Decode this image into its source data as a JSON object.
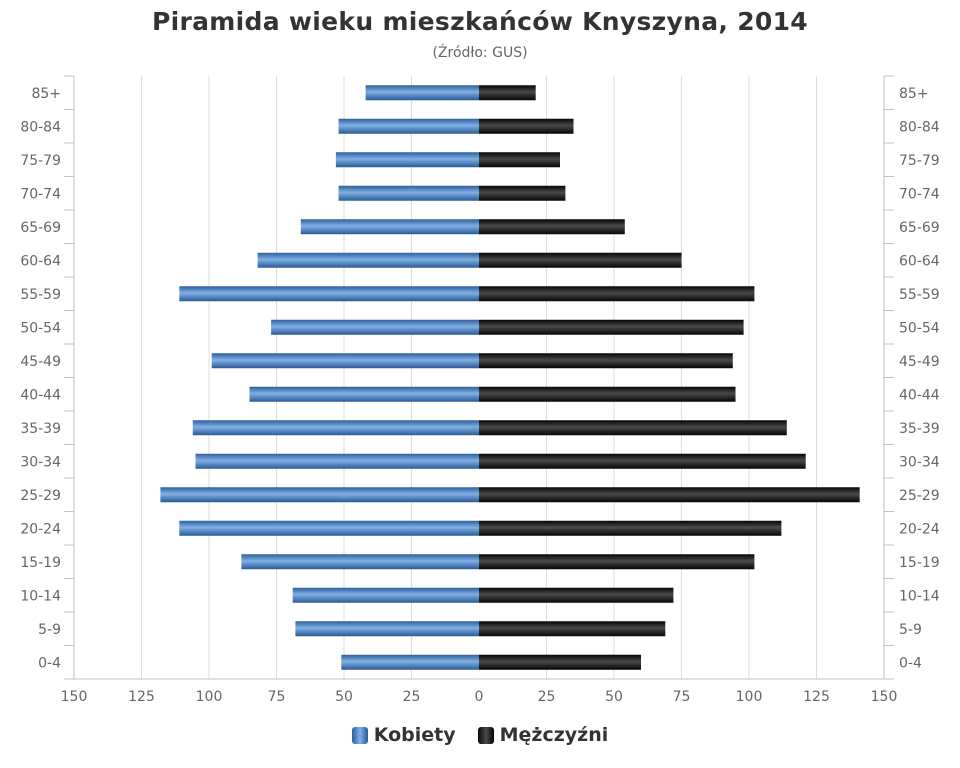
{
  "chart_data": {
    "type": "bar",
    "title": "Piramida wieku mieszkańców Knyszyna, 2014",
    "subtitle": "(Źródło: GUS)",
    "categories": [
      "85+",
      "80-84",
      "75-79",
      "70-74",
      "65-69",
      "60-64",
      "55-59",
      "50-54",
      "45-49",
      "40-44",
      "35-39",
      "30-34",
      "25-29",
      "20-24",
      "15-19",
      "10-14",
      "5-9",
      "0-4"
    ],
    "series": [
      {
        "name": "Kobiety",
        "color": "#4a84c4",
        "values": [
          42,
          52,
          53,
          52,
          66,
          82,
          111,
          77,
          99,
          85,
          106,
          105,
          118,
          111,
          88,
          69,
          68,
          51
        ]
      },
      {
        "name": "Mężczyźni",
        "color": "#1a1a1a",
        "values": [
          21,
          35,
          30,
          32,
          54,
          75,
          102,
          98,
          94,
          95,
          114,
          121,
          141,
          112,
          102,
          72,
          69,
          60
        ]
      }
    ],
    "x_ticks": [
      "150",
      "125",
      "100",
      "75",
      "50",
      "25",
      "0",
      "25",
      "50",
      "75",
      "100",
      "125",
      "150"
    ],
    "xlim": [
      -150,
      150
    ],
    "grid": true,
    "legend_position": "bottom"
  }
}
